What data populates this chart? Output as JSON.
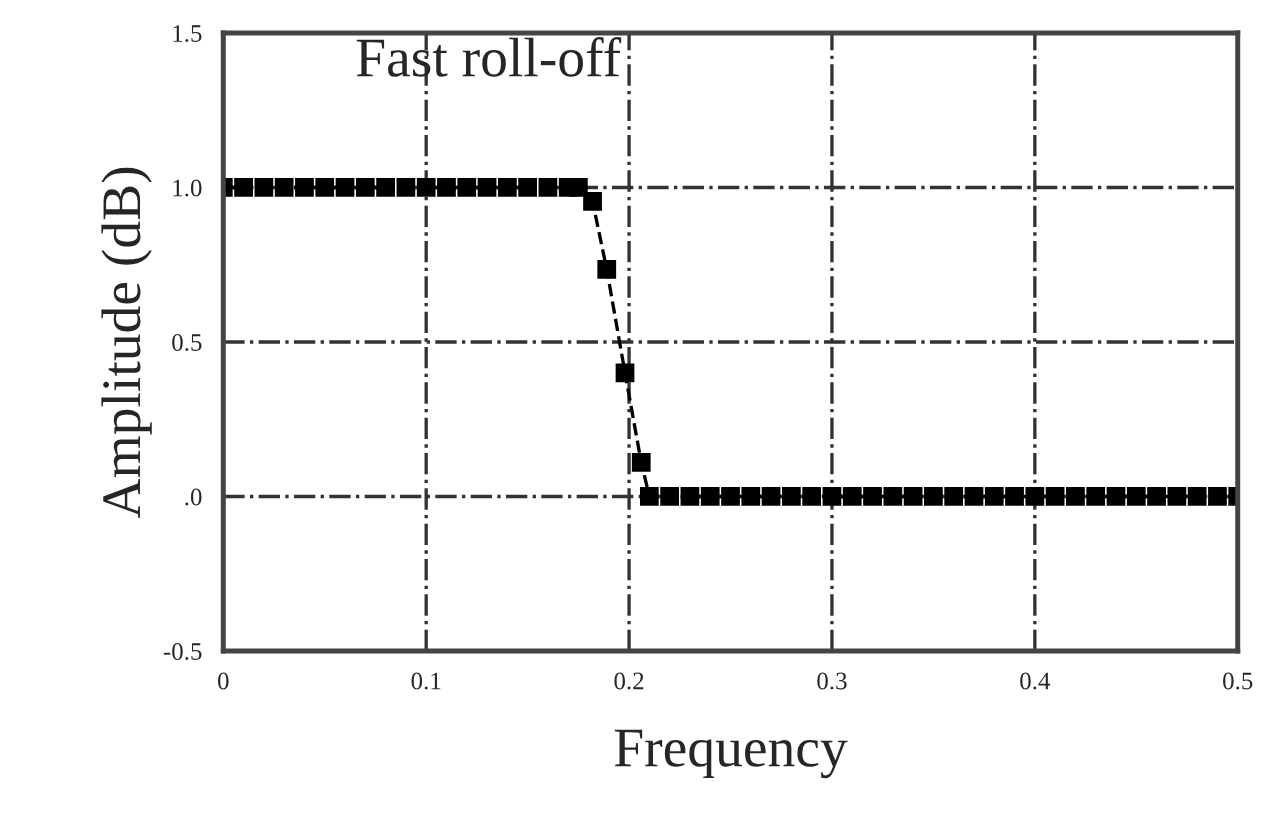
{
  "chart_data": {
    "type": "line",
    "xlabel": "Frequency",
    "ylabel": "Amplitude (dB)",
    "annotations": [
      "Fast roll-off"
    ],
    "x": [
      0,
      0.01,
      0.02,
      0.03,
      0.04,
      0.05,
      0.06,
      0.07,
      0.08,
      0.09,
      0.1,
      0.11,
      0.12,
      0.13,
      0.14,
      0.15,
      0.16,
      0.17,
      0.175,
      0.182,
      0.189,
      0.198,
      0.206,
      0.21,
      0.22,
      0.23,
      0.24,
      0.25,
      0.26,
      0.27,
      0.28,
      0.29,
      0.3,
      0.31,
      0.32,
      0.33,
      0.34,
      0.35,
      0.36,
      0.37,
      0.38,
      0.39,
      0.4,
      0.41,
      0.42,
      0.43,
      0.44,
      0.45,
      0.46,
      0.47,
      0.48,
      0.49,
      0.5
    ],
    "series": [
      {
        "color": "#000000",
        "values": [
          1,
          1,
          1,
          1,
          1,
          1,
          1,
          1,
          1,
          1,
          1,
          1,
          1,
          1,
          1,
          1,
          1,
          1,
          1,
          0.955,
          0.735,
          0.4,
          0.11,
          0,
          0,
          0,
          0,
          0,
          0,
          0,
          0,
          0,
          0,
          0,
          0,
          0,
          0,
          0,
          0,
          0,
          0,
          0,
          0,
          0,
          0,
          0,
          0,
          0,
          0,
          0,
          0,
          0,
          0
        ]
      }
    ],
    "xlim": [
      0,
      0.5
    ],
    "xticks": [
      0,
      0.1,
      0.2,
      0.3,
      0.4,
      0.5
    ],
    "ylim": [
      -0.5,
      1.5
    ],
    "yticks": [
      -0.5,
      {
        "value": 0,
        "label": ".0"
      },
      0.5,
      {
        "value": 1,
        "label": "1.0"
      },
      1.5
    ],
    "grid": true,
    "marker": "square",
    "line_style": "dashed",
    "legend": false
  }
}
